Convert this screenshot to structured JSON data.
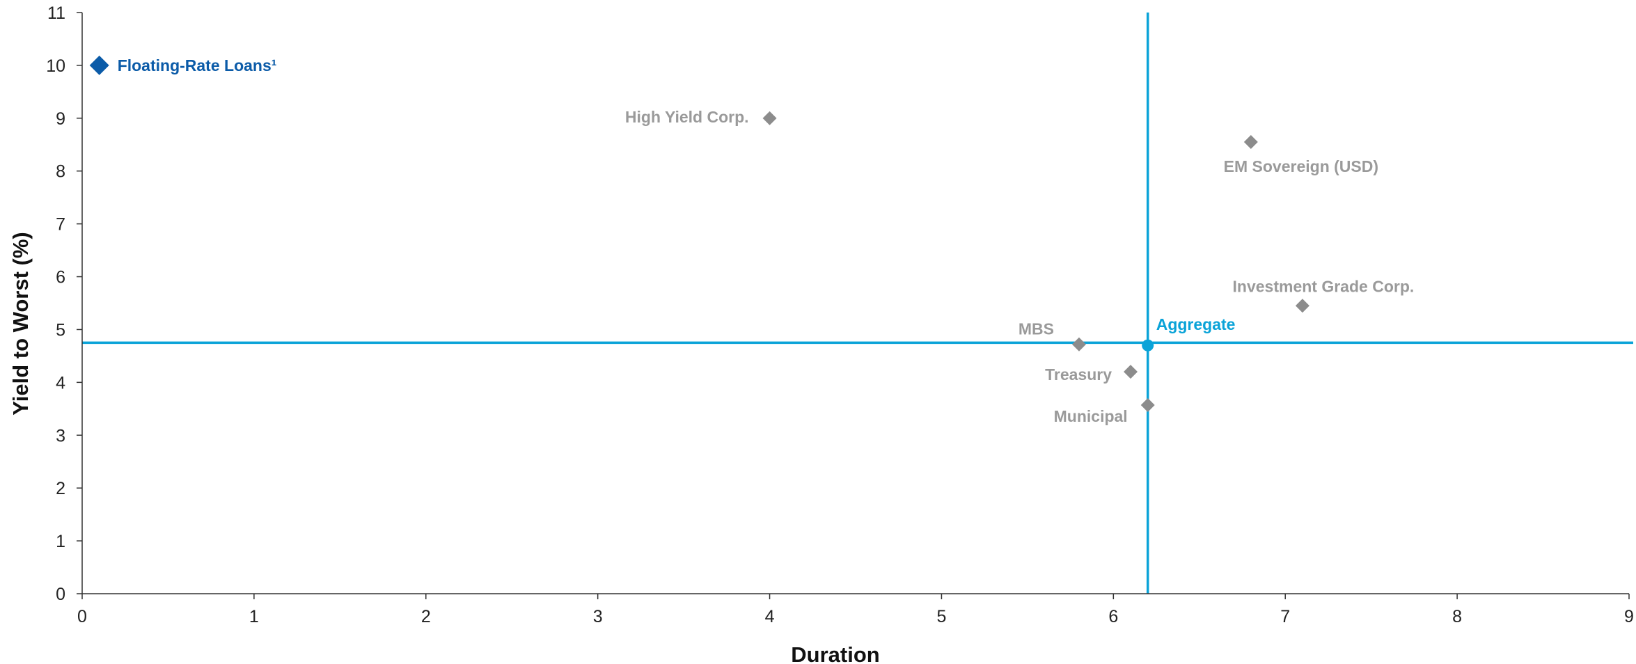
{
  "chart_data": {
    "type": "scatter",
    "title": "",
    "xlabel": "Duration",
    "ylabel": "Yield to Worst (%)",
    "xlim": [
      0,
      9
    ],
    "ylim": [
      0,
      11
    ],
    "xticks": [
      "0",
      "1",
      "2",
      "3",
      "4",
      "5",
      "6",
      "7",
      "8",
      "9"
    ],
    "yticks": [
      "0",
      "1",
      "2",
      "3",
      "4",
      "5",
      "6",
      "7",
      "8",
      "9",
      "10",
      "11"
    ],
    "grid": false,
    "legend": "none",
    "colors": {
      "highlight": "#0b5ba8",
      "aggregate": "#0aa3d8",
      "other": "#8c8c8c",
      "other_label": "#9a9a9a",
      "axis": "#333333"
    },
    "reference_lines": {
      "x": 6.2,
      "y": 4.75
    },
    "points": [
      {
        "label": "Floating-Rate Loans¹",
        "x": 0.1,
        "y": 10.0,
        "marker": "diamond",
        "style": "highlight"
      },
      {
        "label": "High Yield Corp.",
        "x": 4.0,
        "y": 9.0,
        "marker": "diamond",
        "style": "other"
      },
      {
        "label": "EM Sovereign (USD)",
        "x": 6.8,
        "y": 8.55,
        "marker": "diamond",
        "style": "other"
      },
      {
        "label": "Investment Grade Corp.",
        "x": 7.1,
        "y": 5.45,
        "marker": "diamond",
        "style": "other"
      },
      {
        "label": "MBS",
        "x": 5.8,
        "y": 4.72,
        "marker": "diamond",
        "style": "other"
      },
      {
        "label": "Aggregate",
        "x": 6.2,
        "y": 4.7,
        "marker": "circle",
        "style": "aggregate"
      },
      {
        "label": "Treasury",
        "x": 6.1,
        "y": 4.2,
        "marker": "diamond",
        "style": "other"
      },
      {
        "label": "Municipal",
        "x": 6.2,
        "y": 3.57,
        "marker": "diamond",
        "style": "other"
      }
    ]
  }
}
